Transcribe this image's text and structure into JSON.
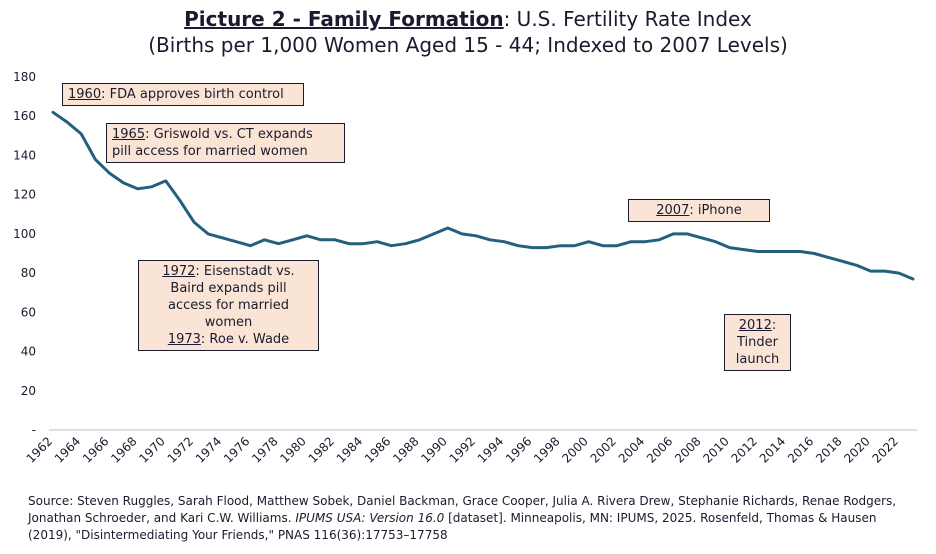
{
  "title": {
    "bold": "Picture 2 - Family Formation",
    "rest": ": U.S. Fertility Rate Index",
    "line2": "(Births per 1,000 Women Aged 15 - 44; Indexed to 2007 Levels)"
  },
  "chart_data": {
    "type": "line",
    "title": "Picture 2 - Family Formation: U.S. Fertility Rate Index",
    "subtitle": "(Births per 1,000 Women Aged 15 - 44; Indexed to 2007 Levels)",
    "xlabel": "",
    "ylabel": "",
    "ylim": [
      0,
      180
    ],
    "yticks": [
      0,
      20,
      40,
      60,
      80,
      100,
      120,
      140,
      160,
      180
    ],
    "ytick_labels": [
      "-",
      "20",
      "40",
      "60",
      "80",
      "100",
      "120",
      "140",
      "160",
      "180"
    ],
    "xticks": [
      "1962",
      "1964",
      "1966",
      "1968",
      "1970",
      "1972",
      "1974",
      "1976",
      "1978",
      "1980",
      "1982",
      "1984",
      "1986",
      "1988",
      "1990",
      "1992",
      "1994",
      "1996",
      "1998",
      "2000",
      "2002",
      "2004",
      "2006",
      "2008",
      "2010",
      "2012",
      "2014",
      "2016",
      "2018",
      "2020",
      "2022"
    ],
    "grid": false,
    "series": [
      {
        "name": "Fertility Rate Index",
        "color": "#23607e",
        "x": [
          1962,
          1963,
          1964,
          1965,
          1966,
          1967,
          1968,
          1969,
          1970,
          1971,
          1972,
          1973,
          1974,
          1975,
          1976,
          1977,
          1978,
          1979,
          1980,
          1981,
          1982,
          1983,
          1984,
          1985,
          1986,
          1987,
          1988,
          1989,
          1990,
          1991,
          1992,
          1993,
          1994,
          1995,
          1996,
          1997,
          1998,
          1999,
          2000,
          2001,
          2002,
          2003,
          2004,
          2005,
          2006,
          2007,
          2008,
          2009,
          2010,
          2011,
          2012,
          2013,
          2014,
          2015,
          2016,
          2017,
          2018,
          2019,
          2020,
          2021,
          2022,
          2023
        ],
        "values": [
          162,
          157,
          151,
          138,
          131,
          126,
          123,
          124,
          127,
          117,
          106,
          100,
          98,
          96,
          94,
          97,
          95,
          97,
          99,
          97,
          97,
          95,
          95,
          96,
          94,
          95,
          97,
          100,
          103,
          100,
          99,
          97,
          96,
          94,
          93,
          93,
          94,
          94,
          96,
          94,
          94,
          96,
          96,
          97,
          100,
          100,
          98,
          96,
          93,
          92,
          91,
          91,
          91,
          91,
          90,
          88,
          86,
          84,
          81,
          81,
          80,
          77
        ]
      }
    ],
    "annotations": [
      {
        "year": "1960",
        "text": ": FDA approves birth control"
      },
      {
        "year": "1965",
        "text_a": ": Griswold vs. CT expands",
        "text_b": "pill access for married women"
      },
      {
        "year": "1972",
        "text_a": ": Eisenstadt vs.",
        "text_b": "Baird expands pill",
        "text_c": "access for married",
        "text_d": "women",
        "year2": "1973",
        "text2": ": Roe v. Wade"
      },
      {
        "year": "2007",
        "text": ": iPhone"
      },
      {
        "year": "2012",
        "text_a": ":",
        "text_b": "Tinder",
        "text_c": "launch"
      }
    ]
  },
  "source": {
    "part1": "Source: Steven Ruggles, Sarah Flood, Matthew Sobek, Daniel Backman, Grace Cooper, Julia A. Rivera Drew, Stephanie Richards, Renae Rodgers, Jonathan Schroeder, and Kari C.W. Williams. ",
    "italic": "IPUMS USA: Version 16.0",
    "part2": " [dataset]. Minneapolis, MN: IPUMS, 2025.  Rosenfeld, Thomas & Hausen (2019), \"Disintermediating Your Friends,\" PNAS 116(36):17753–17758"
  }
}
